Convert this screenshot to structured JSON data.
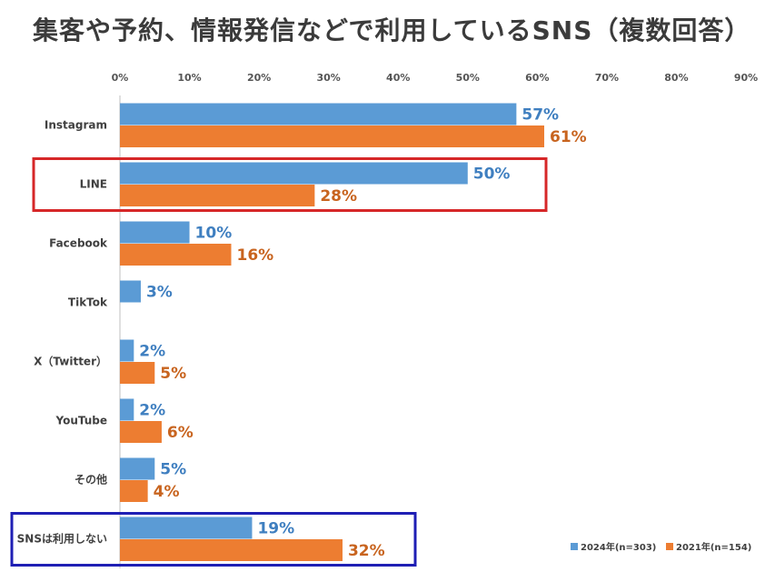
{
  "chart_data": {
    "type": "bar",
    "orientation": "horizontal",
    "title": "集客や予約、情報発信などで利用しているSNS（複数回答）",
    "categories": [
      "Instagram",
      "LINE",
      "Facebook",
      "TikTok",
      "X（Twitter）",
      "YouTube",
      "その他",
      "SNSは利用しない"
    ],
    "series": [
      {
        "name": "2024年(n=303)",
        "color": "#5b9bd5",
        "label_color": "#3f7fc0",
        "values": [
          57,
          50,
          10,
          3,
          2,
          2,
          5,
          19
        ],
        "labels": [
          "57%",
          "50%",
          "10%",
          "3%",
          "2%",
          "2%",
          "5%",
          "19%"
        ]
      },
      {
        "name": "2021年(n=154)",
        "color": "#ed7d31",
        "label_color": "#c8641f",
        "values": [
          61,
          28,
          16,
          null,
          5,
          6,
          4,
          32
        ],
        "labels": [
          "61%",
          "28%",
          "16%",
          "",
          "5%",
          "6%",
          "4%",
          "32%"
        ]
      }
    ],
    "xlim": [
      0,
      90
    ],
    "xticks": [
      "0%",
      "10%",
      "20%",
      "30%",
      "40%",
      "50%",
      "60%",
      "70%",
      "80%",
      "90%"
    ],
    "xlabel": "",
    "ylabel": "",
    "grid": false,
    "legend_position": "bottom-right",
    "highlights": [
      {
        "category": "LINE",
        "color": "#d62728"
      },
      {
        "category": "SNSは利用しない",
        "color": "#1f1fb4"
      }
    ]
  }
}
